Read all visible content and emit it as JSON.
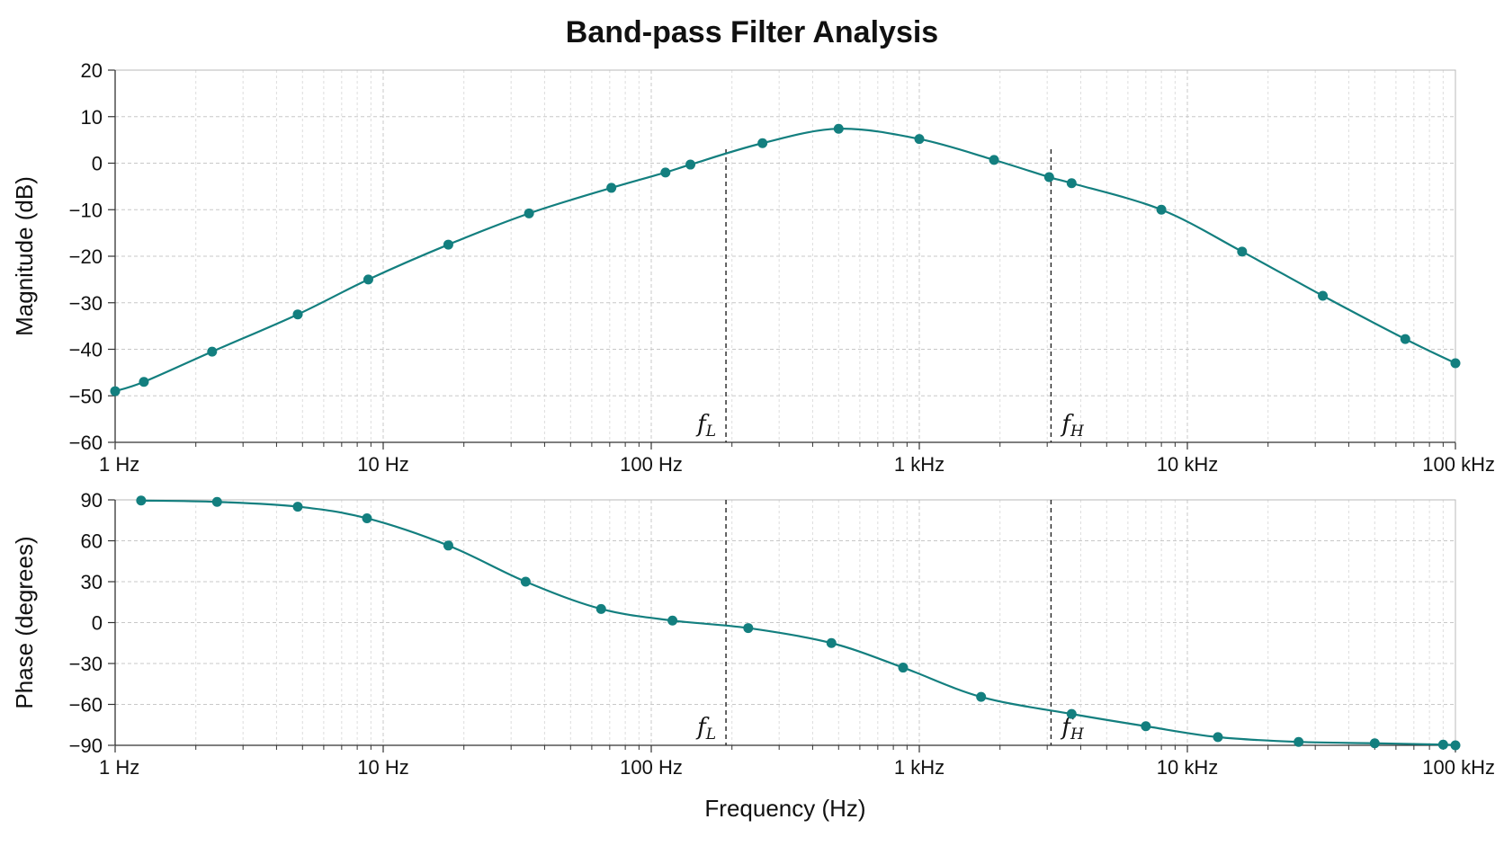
{
  "chart_data": {
    "type": "line",
    "title": "Band-pass Filter Analysis",
    "xlabel": "Frequency (Hz)",
    "x_scale": "log",
    "xlim": [
      1,
      100000
    ],
    "x_ticks": [
      {
        "value": 1,
        "label": "1 Hz"
      },
      {
        "value": 10,
        "label": "10 Hz"
      },
      {
        "value": 100,
        "label": "100 Hz"
      },
      {
        "value": 1000,
        "label": "1 kHz"
      },
      {
        "value": 10000,
        "label": "10 kHz"
      },
      {
        "value": 100000,
        "label": "100 kHz"
      }
    ],
    "grid": true,
    "line_color": "#137f7f",
    "markers": [
      {
        "label": "f",
        "subscript": "L",
        "x": 190
      },
      {
        "label": "f",
        "subscript": "H",
        "x": 3100
      }
    ],
    "panels": [
      {
        "ylabel": "Magnitude (dB)",
        "ylim": [
          -60,
          20
        ],
        "y_ticks": [
          20,
          10,
          0,
          -10,
          -20,
          -30,
          -40,
          -50,
          -60
        ],
        "series": [
          {
            "points": [
              [
                1,
                -49
              ],
              [
                1.28,
                -47
              ],
              [
                2.3,
                -40.5
              ],
              [
                4.8,
                -32.5
              ],
              [
                8.8,
                -25
              ],
              [
                17.5,
                -17.5
              ],
              [
                35,
                -10.8
              ],
              [
                71,
                -5.3
              ],
              [
                113,
                -2
              ],
              [
                140,
                -0.3
              ],
              [
                260,
                4.3
              ],
              [
                500,
                7.4
              ],
              [
                1000,
                5.2
              ],
              [
                1900,
                0.7
              ],
              [
                3050,
                -3
              ],
              [
                3700,
                -4.3
              ],
              [
                8000,
                -10
              ],
              [
                16000,
                -19
              ],
              [
                32000,
                -28.5
              ],
              [
                65000,
                -37.8
              ],
              [
                100000,
                -43
              ]
            ]
          }
        ]
      },
      {
        "ylabel": "Phase (degrees)",
        "ylim": [
          -90,
          90
        ],
        "y_ticks": [
          90,
          60,
          30,
          0,
          -30,
          -60,
          -90
        ],
        "series": [
          {
            "points": [
              [
                1.25,
                89.5
              ],
              [
                2.4,
                88.5
              ],
              [
                4.8,
                85
              ],
              [
                8.7,
                76.5
              ],
              [
                17.5,
                56.5
              ],
              [
                34,
                30
              ],
              [
                65,
                10
              ],
              [
                120,
                1.5
              ],
              [
                230,
                -4
              ],
              [
                470,
                -15
              ],
              [
                870,
                -33
              ],
              [
                1700,
                -54.5
              ],
              [
                3700,
                -67
              ],
              [
                7000,
                -76
              ],
              [
                13000,
                -84
              ],
              [
                26000,
                -87.5
              ],
              [
                50000,
                -88.5
              ],
              [
                90000,
                -89.5
              ],
              [
                100000,
                -90
              ]
            ]
          }
        ]
      }
    ]
  }
}
